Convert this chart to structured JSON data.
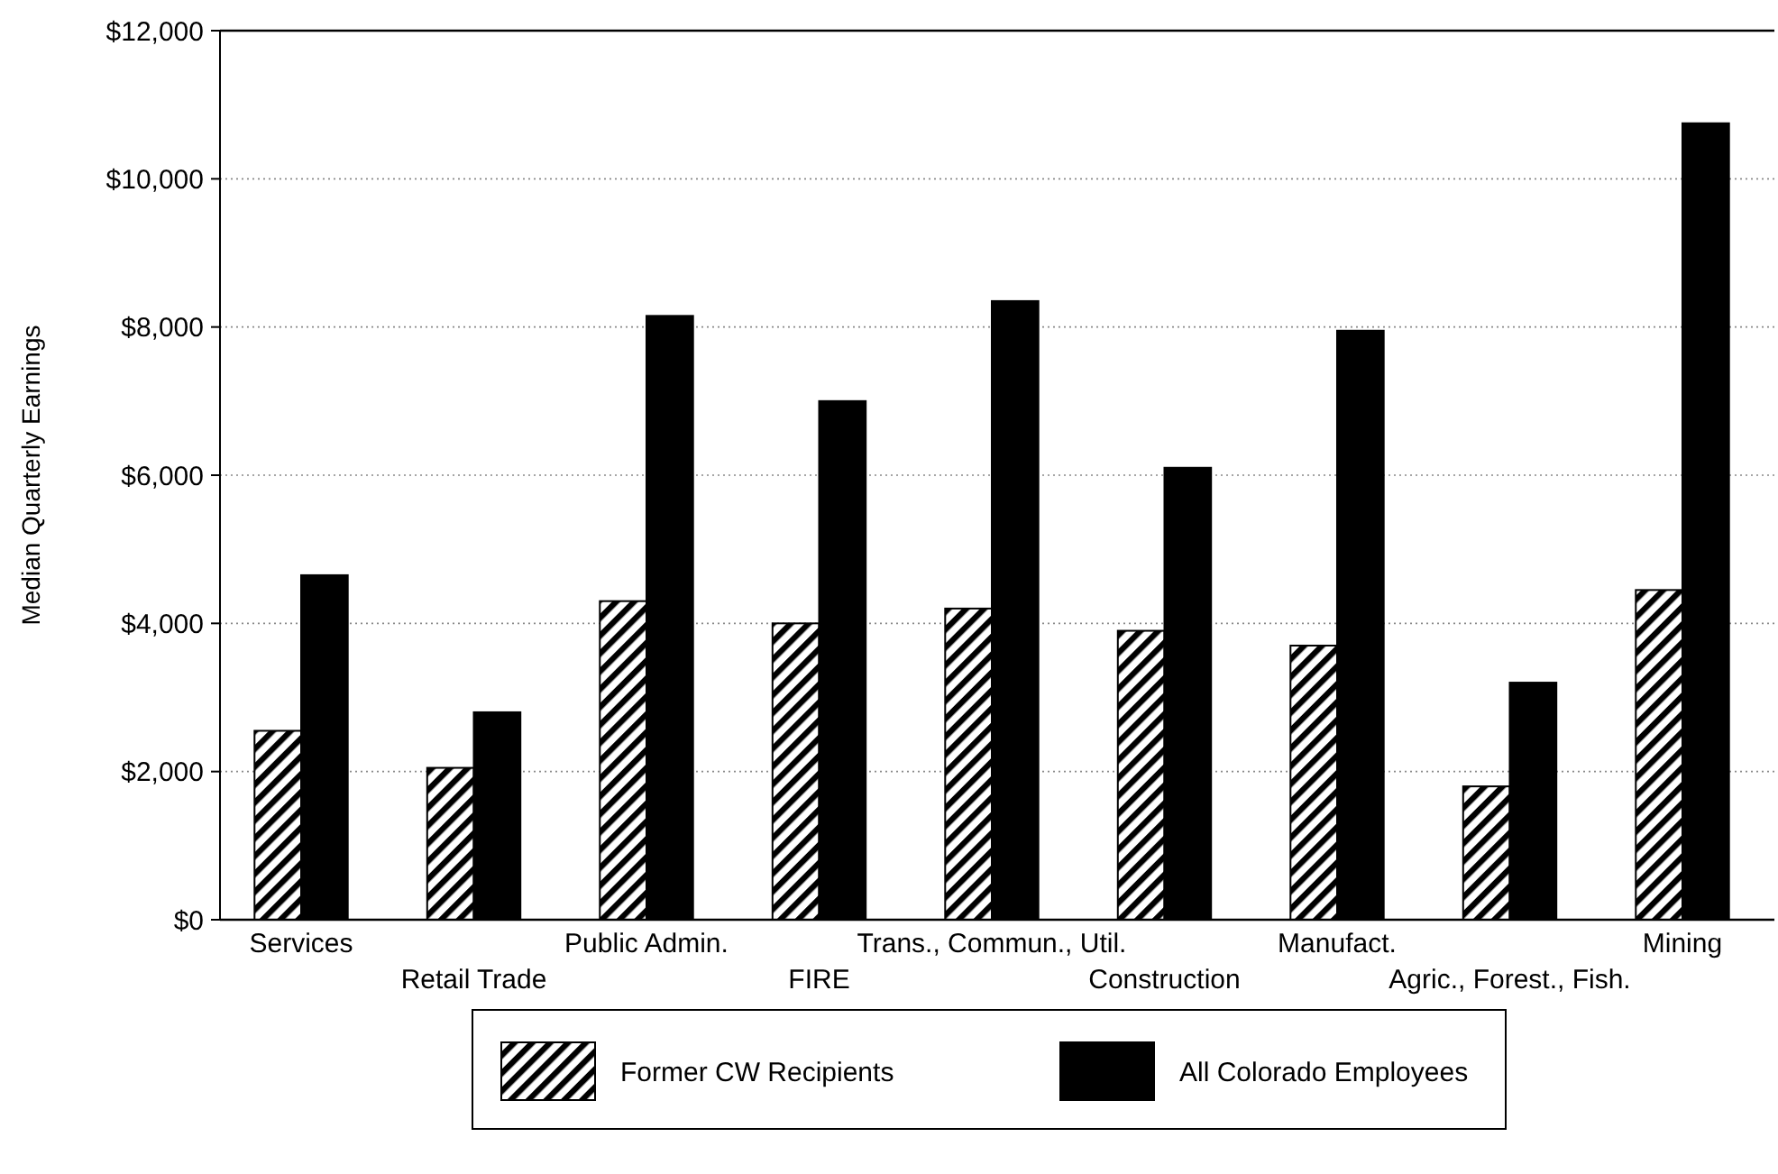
{
  "chart_data": {
    "type": "bar",
    "ylabel": "Median Quarterly Earnings",
    "categories": [
      "Services",
      "Retail Trade",
      "Public Admin.",
      "FIRE",
      "Trans., Commun., Util.",
      "Construction",
      "Manufact.",
      "Agric., Forest., Fish.",
      "Mining"
    ],
    "series": [
      {
        "name": "Former CW Recipients",
        "color": "#000000",
        "values": [
          2550,
          2050,
          4300,
          4000,
          4200,
          3900,
          3700,
          1800,
          4450
        ]
      },
      {
        "name": "All Colorado Employees",
        "color": "#000000",
        "values": [
          4650,
          2800,
          8150,
          7000,
          8350,
          6100,
          7950,
          3200,
          10750
        ]
      }
    ],
    "ylim": [
      0,
      12000
    ],
    "yticks": [
      {
        "value": 0,
        "label": "$0"
      },
      {
        "value": 2000,
        "label": "$2,000"
      },
      {
        "value": 4000,
        "label": "$4,000"
      },
      {
        "value": 6000,
        "label": "$6,000"
      },
      {
        "value": 8000,
        "label": "$8,000"
      },
      {
        "value": 10000,
        "label": "$10,000"
      },
      {
        "value": 12000,
        "label": "$12,000"
      }
    ],
    "grid": "y",
    "legend": "bottom"
  }
}
